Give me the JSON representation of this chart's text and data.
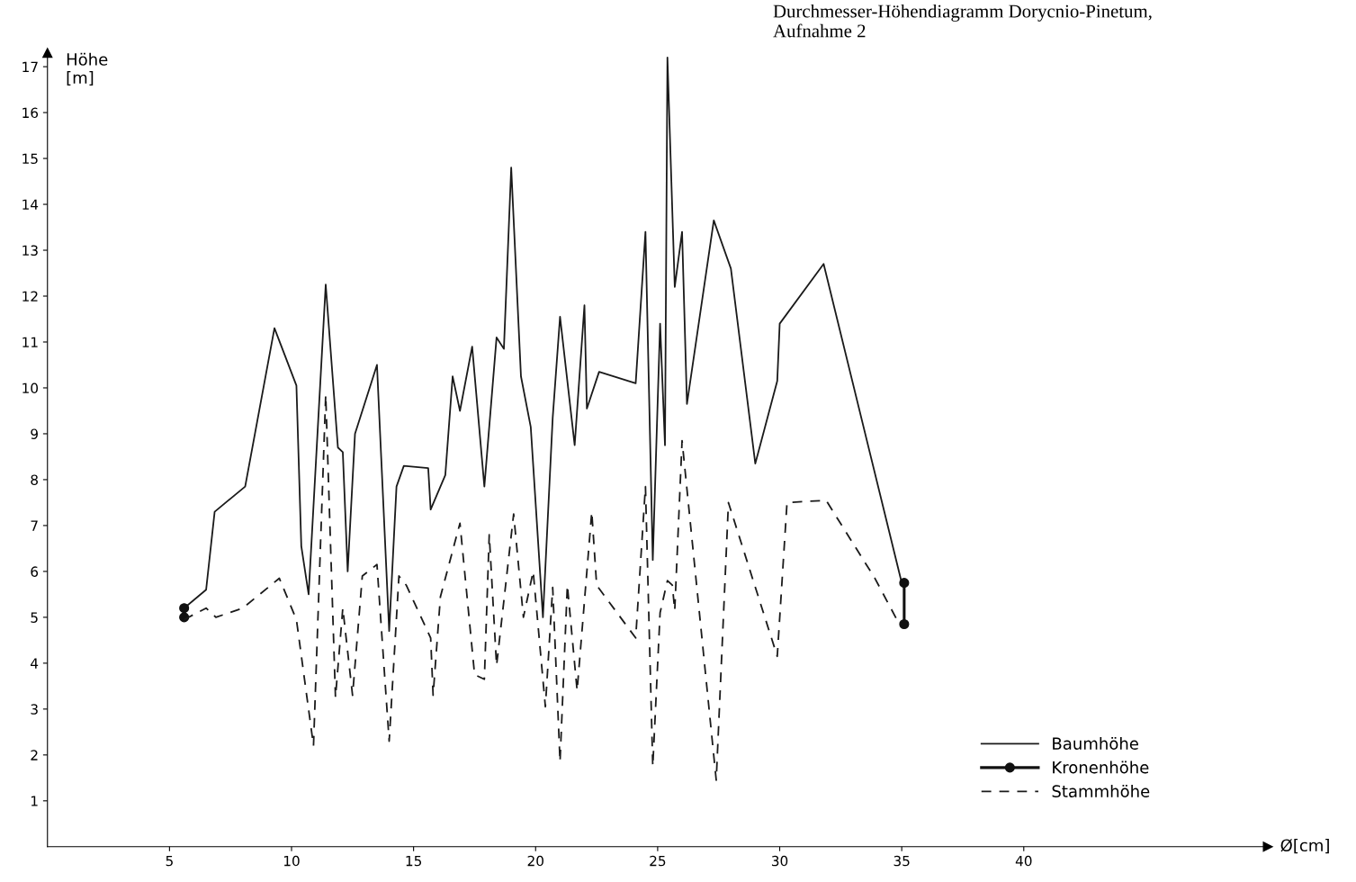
{
  "chart_data": {
    "type": "line",
    "title": "Durchmesser-Höhendiagramm Dorycnio-Pinetum,\nAufnahme 2",
    "xlabel": "Ø[cm]",
    "ylabel": "Höhe\n[m]",
    "xlim": [
      0,
      50
    ],
    "xticks": [
      5,
      10,
      15,
      20,
      25,
      30,
      35,
      40
    ],
    "ylim": [
      0,
      17.3
    ],
    "yticks": [
      1,
      2,
      3,
      4,
      5,
      6,
      7,
      8,
      9,
      10,
      11,
      12,
      13,
      14,
      15,
      16,
      17
    ],
    "grid": false,
    "legend": "bottom right",
    "series": [
      {
        "name": "Baumhöhe",
        "color": "#1a1a1a",
        "line_style": "solid",
        "marker": "none",
        "x": [
          5.6,
          6.5,
          6.85,
          8.1,
          9.3,
          10.2,
          10.4,
          10.7,
          11.4,
          11.9,
          12.1,
          12.3,
          12.6,
          13.5,
          14.0,
          14.3,
          14.6,
          15.6,
          15.7,
          16.3,
          16.6,
          16.9,
          17.4,
          17.9,
          18.4,
          18.7,
          19.0,
          19.4,
          19.8,
          20.3,
          20.7,
          21.0,
          21.6,
          22.0,
          22.1,
          22.6,
          24.1,
          24.5,
          24.8,
          25.1,
          25.3,
          25.4,
          25.7,
          26.0,
          26.2,
          27.3,
          28.0,
          29.0,
          29.9,
          30.0,
          31.8,
          35.0
        ],
        "values": [
          5.2,
          5.6,
          7.3,
          7.85,
          11.3,
          10.05,
          6.55,
          5.5,
          12.25,
          8.7,
          8.6,
          6.0,
          9.0,
          10.5,
          4.7,
          7.85,
          8.3,
          8.25,
          7.35,
          8.1,
          10.25,
          9.5,
          10.9,
          7.85,
          11.1,
          10.85,
          14.8,
          10.25,
          9.15,
          5.0,
          9.35,
          11.55,
          8.75,
          11.8,
          9.55,
          10.35,
          10.1,
          13.4,
          6.25,
          11.4,
          8.75,
          17.2,
          12.2,
          13.4,
          9.65,
          13.65,
          12.6,
          8.35,
          10.15,
          11.4,
          12.7,
          5.75
        ]
      },
      {
        "name": "Kronenhöhe",
        "color": "#111111",
        "line_style": "solid",
        "marker": "circle",
        "x": [
          5.6,
          5.6,
          20,
          35.1,
          35.1
        ],
        "values": [
          5.2,
          5.0,
          null,
          5.75,
          4.85
        ]
      },
      {
        "name": "Stammhöhe",
        "color": "#1a1a1a",
        "line_style": "dashed",
        "marker": "none",
        "x": [
          5.6,
          6.5,
          6.9,
          8.0,
          9.5,
          10.2,
          10.9,
          11.4,
          11.8,
          12.1,
          12.5,
          12.9,
          13.5,
          14.0,
          14.4,
          14.7,
          15.7,
          15.8,
          16.1,
          16.9,
          17.5,
          17.9,
          18.1,
          18.4,
          19.1,
          19.5,
          19.9,
          20.4,
          20.7,
          21.0,
          21.3,
          21.7,
          22.3,
          22.5,
          24.1,
          24.5,
          24.8,
          25.1,
          25.4,
          25.6,
          25.7,
          26.0,
          27.4,
          27.9,
          29.9,
          30.3,
          31.9,
          33.9,
          34.9
        ],
        "values": [
          4.95,
          5.2,
          5.0,
          5.2,
          5.85,
          4.95,
          2.2,
          9.85,
          3.25,
          5.2,
          3.3,
          5.9,
          6.15,
          2.3,
          5.9,
          5.7,
          4.55,
          3.3,
          5.45,
          7.05,
          3.75,
          3.65,
          6.8,
          3.95,
          7.25,
          5.0,
          6.0,
          3.05,
          5.65,
          1.85,
          5.7,
          3.4,
          7.3,
          5.7,
          4.55,
          7.85,
          1.75,
          5.1,
          5.8,
          5.7,
          5.15,
          8.85,
          1.45,
          7.5,
          4.15,
          7.5,
          7.55,
          5.85,
          4.85
        ]
      }
    ]
  }
}
